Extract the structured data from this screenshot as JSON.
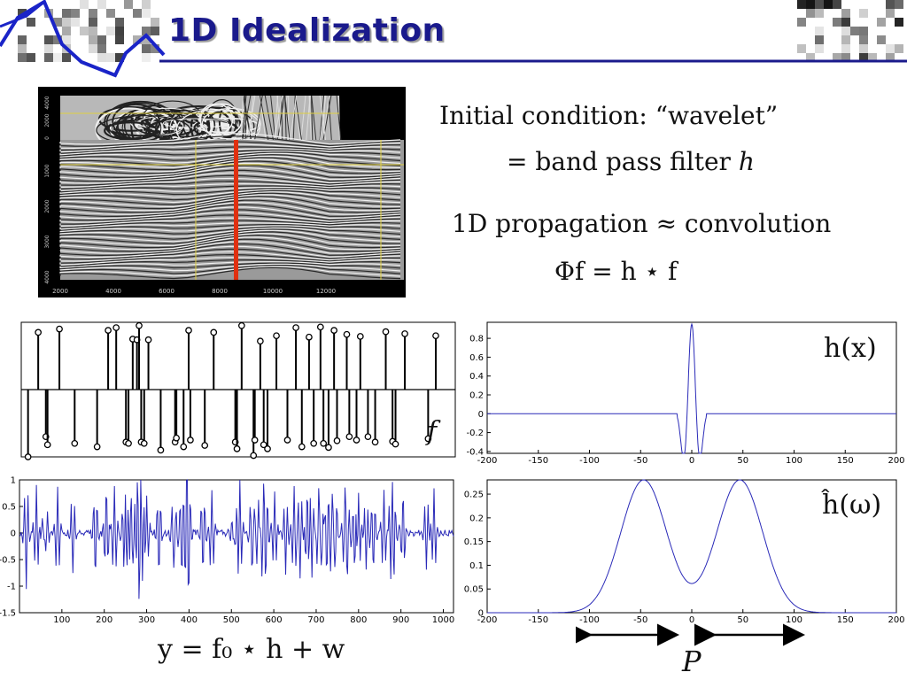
{
  "slide": {
    "title": "1D Idealization",
    "eq_initial": "Initial condition:  “wavelet”",
    "eq_band_prefix": "= band pass filter ",
    "eq_band_var": "h",
    "eq_prop": "1D propagation ≈ convolution",
    "eq_phi": "Φf = h ⋆ f",
    "label_f": "f",
    "label_hx": "h(x)",
    "label_hw": "ĥ(ω)",
    "label_y": "y = f₀ ⋆ h + w",
    "label_p": "P"
  },
  "seismic": {
    "x_ticks": [
      "2000",
      "4000",
      "6000",
      "8000",
      "10000",
      "12000"
    ],
    "y_ticks_top": [
      "4000",
      "2000",
      "0"
    ],
    "y_ticks_bottom": [
      "1000",
      "2000",
      "3000",
      "4000"
    ]
  },
  "chart_data": [
    {
      "type": "scatter",
      "name": "spikes",
      "xlim": [
        0,
        1024
      ],
      "ylim": [
        -1,
        1
      ],
      "x": [
        16,
        40,
        58,
        62,
        90,
        126,
        179,
        205,
        224,
        247,
        253,
        263,
        273,
        278,
        283,
        290,
        300,
        329,
        363,
        366,
        383,
        395,
        399,
        433,
        454,
        505,
        509,
        520,
        548,
        551,
        564,
        572,
        581,
        602,
        628,
        648,
        662,
        679,
        690,
        706,
        713,
        725,
        738,
        745,
        768,
        774,
        791,
        800,
        818,
        835,
        860,
        876,
        883,
        905,
        960,
        978
      ],
      "values": [
        -1.0,
        0.85,
        -0.7,
        -0.82,
        0.9,
        -0.8,
        -0.85,
        0.88,
        0.92,
        -0.78,
        -0.8,
        0.75,
        0.74,
        0.95,
        -0.78,
        -0.8,
        0.74,
        -0.9,
        -0.78,
        -0.72,
        -0.85,
        0.88,
        -0.75,
        -0.83,
        0.85,
        -0.78,
        -0.88,
        0.95,
        -0.98,
        -0.75,
        0.72,
        -0.82,
        -0.88,
        0.8,
        -0.75,
        0.92,
        -0.85,
        0.78,
        -0.8,
        0.93,
        -0.8,
        -0.86,
        0.88,
        -0.76,
        0.82,
        -0.7,
        -0.75,
        0.79,
        -0.7,
        -0.78,
        0.86,
        -0.77,
        -0.81,
        0.83,
        -0.73,
        0.8
      ]
    },
    {
      "type": "line",
      "name": "observed signal",
      "xlim": [
        0,
        1024
      ],
      "ylim": [
        -1.5,
        1
      ],
      "y_ticks": [
        "1",
        "0.5",
        "0",
        "-0.5",
        "-1",
        "-1.5"
      ],
      "x_ticks": [
        "100",
        "200",
        "300",
        "400",
        "500",
        "600",
        "700",
        "800",
        "900",
        "1000"
      ]
    },
    {
      "type": "line",
      "name": "h(x)",
      "xlim": [
        -200,
        200
      ],
      "ylim": [
        -0.42,
        0.97
      ],
      "y_ticks": [
        "0.8",
        "0.6",
        "0.4",
        "0.2",
        "0",
        "-0.2",
        "-0.4"
      ],
      "x_ticks": [
        "-200",
        "-150",
        "-100",
        "-50",
        "0",
        "50",
        "100",
        "150",
        "200"
      ]
    },
    {
      "type": "line",
      "name": "ĥ(ω)",
      "xlim": [
        -200,
        200
      ],
      "ylim": [
        0,
        0.28
      ],
      "y_ticks": [
        "0.25",
        "0.2",
        "0.15",
        "0.1",
        "0.05",
        "0"
      ],
      "x_ticks": [
        "-200",
        "-150",
        "-100",
        "-50",
        "0",
        "50",
        "100",
        "150",
        "200"
      ]
    }
  ],
  "colors": {
    "title": "#1a1a8c",
    "curve": "#2a2ab8",
    "seismic_marker": "#e03010",
    "corner_stroke": "#1a24c8"
  }
}
